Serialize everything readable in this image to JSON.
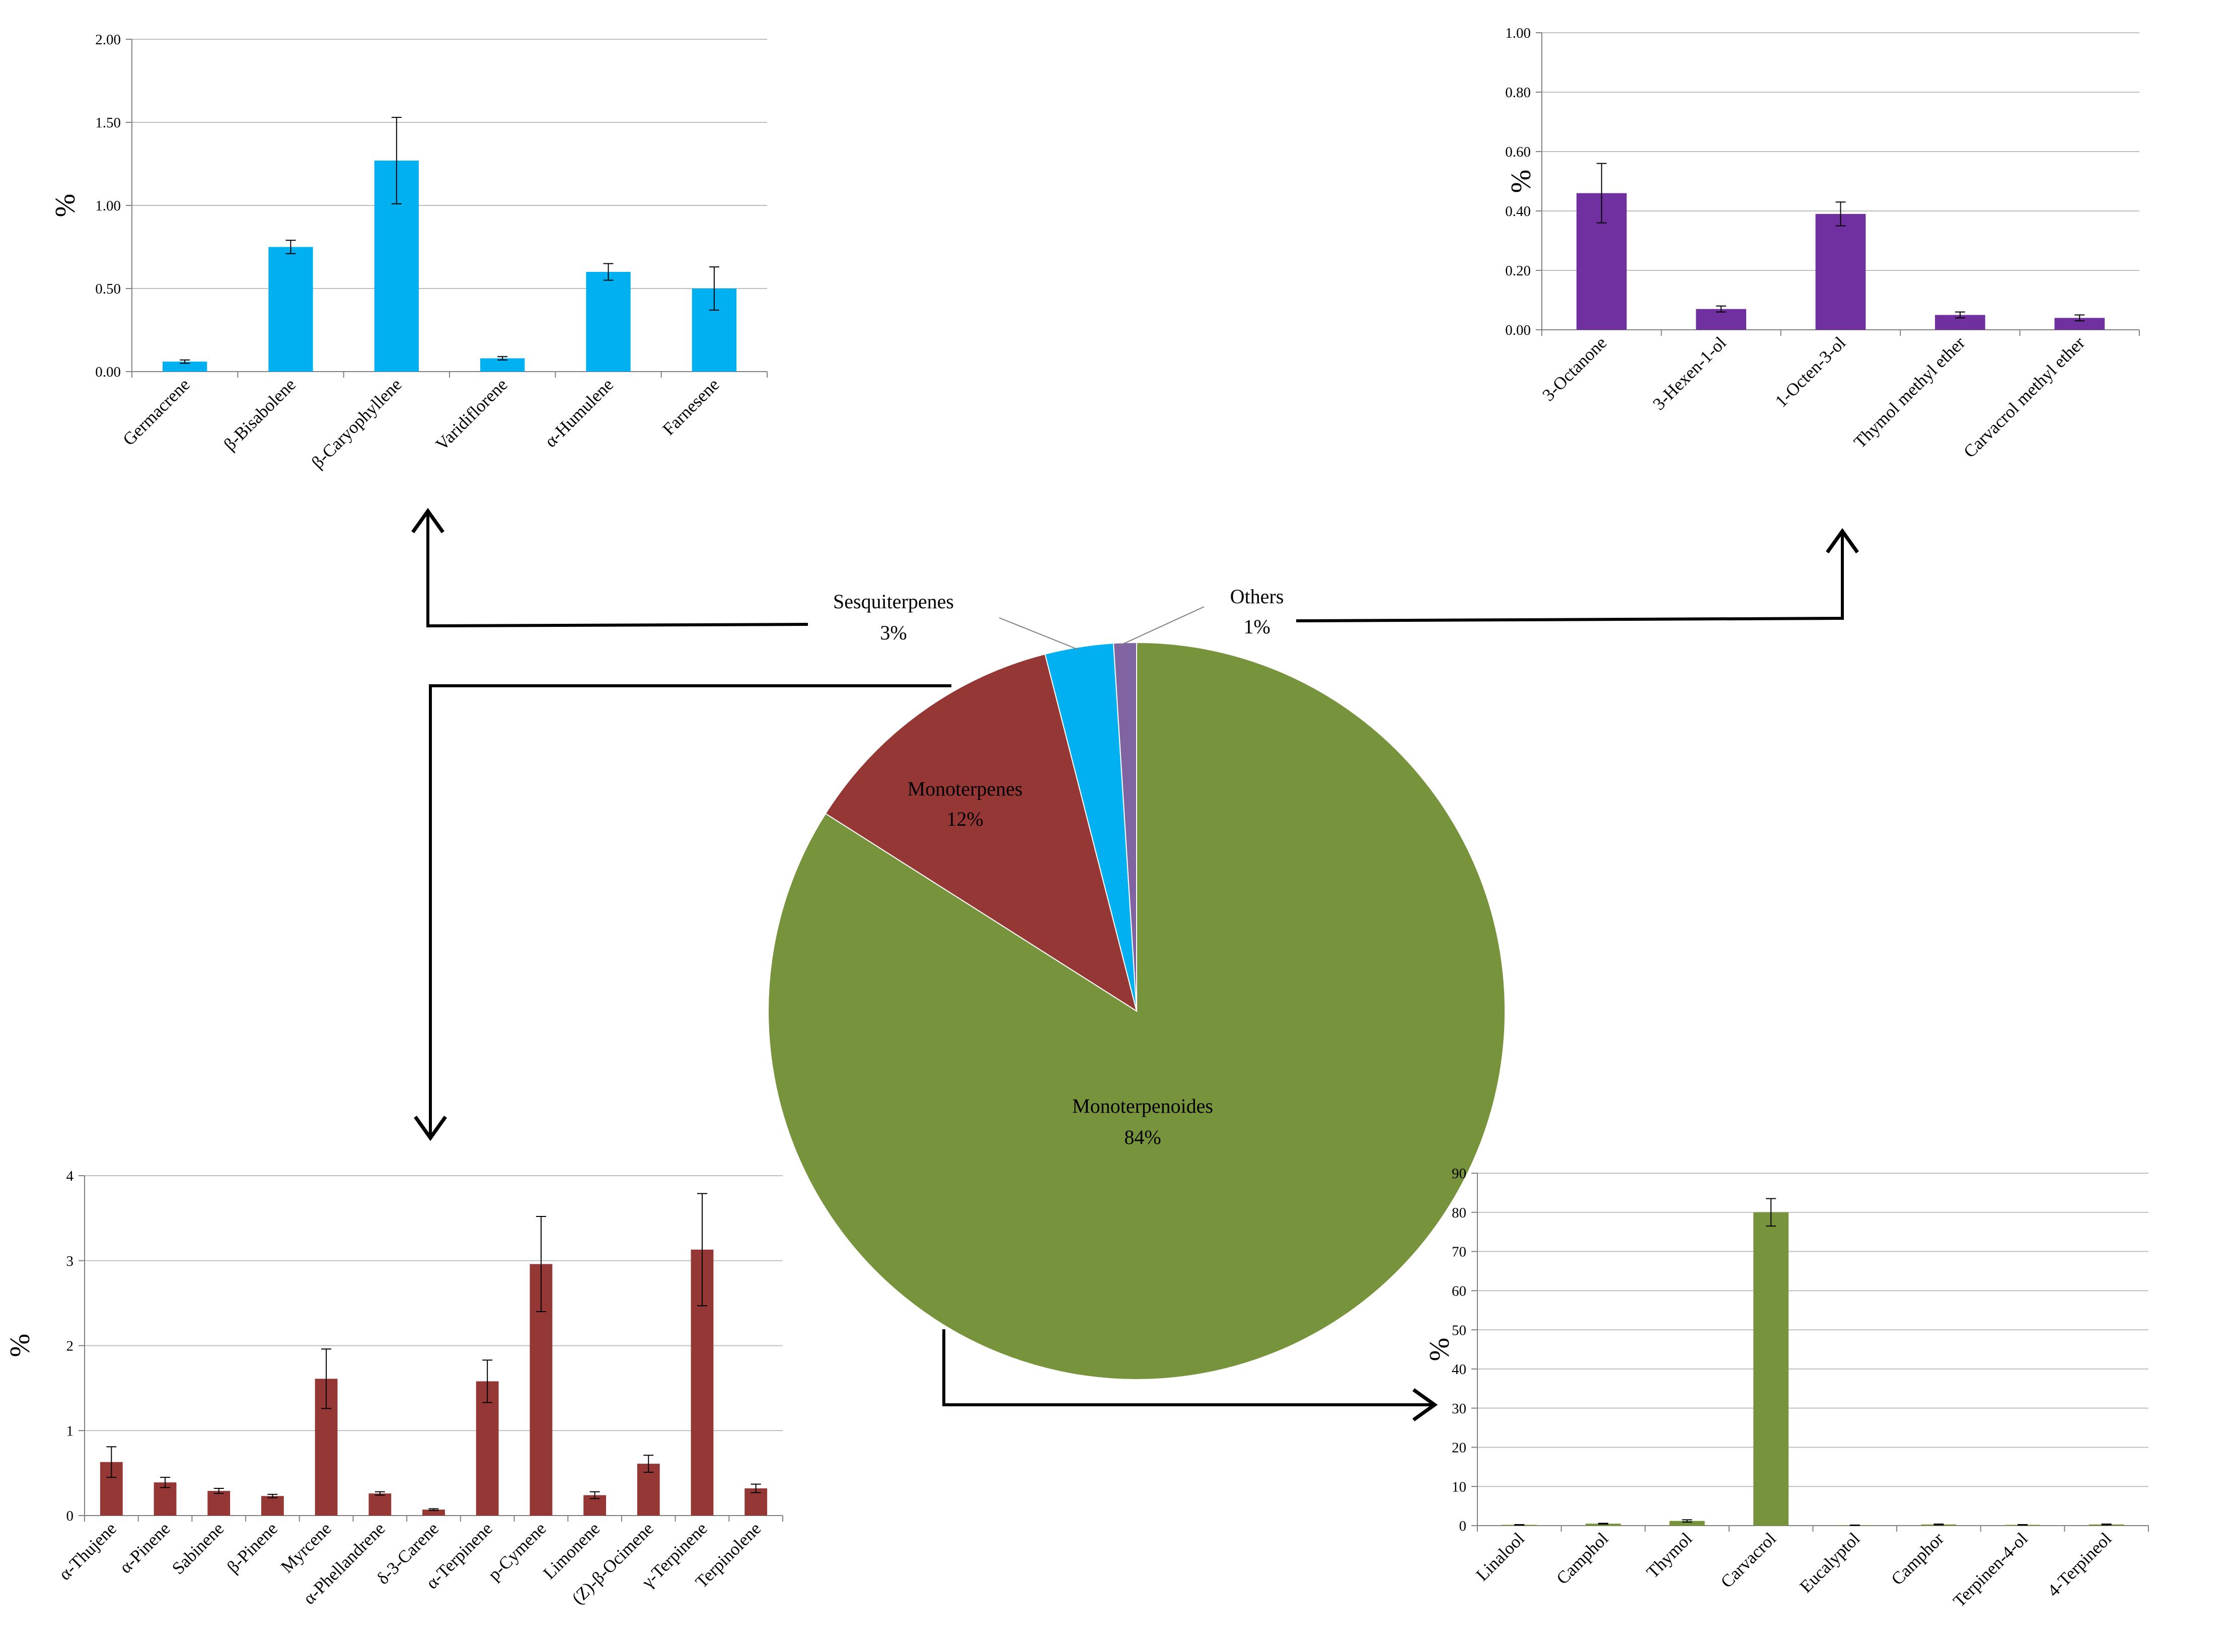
{
  "chart_data": [
    {
      "id": "pie",
      "type": "pie",
      "slices": [
        {
          "label": "Monoterpenoides",
          "pct_label": "84%",
          "value": 84,
          "color": "#77933C"
        },
        {
          "label": "Monoterpenes",
          "pct_label": "12%",
          "value": 12,
          "color": "#953735"
        },
        {
          "label": "Sesquiterpenes",
          "pct_label": "3%",
          "value": 3,
          "color": "#00B0F0"
        },
        {
          "label": "Others",
          "pct_label": "1%",
          "value": 1,
          "color": "#8064A2"
        }
      ]
    },
    {
      "id": "sesquiterpenes",
      "type": "bar",
      "ylabel": "%",
      "ylim": [
        0,
        2
      ],
      "yticks": [
        "0.00",
        "0.50",
        "1.00",
        "1.50",
        "2.00"
      ],
      "color": "#00B0F0",
      "categories": [
        "Germacrene",
        "β-Bisabolene",
        "β-Caryophyllene",
        "Varidiflorene",
        "α-Humulene",
        "Farnesene"
      ],
      "values": [
        0.06,
        0.75,
        1.27,
        0.08,
        0.6,
        0.5
      ],
      "errors": [
        0.01,
        0.04,
        0.26,
        0.01,
        0.05,
        0.13
      ]
    },
    {
      "id": "others",
      "type": "bar",
      "ylabel": "%",
      "ylim": [
        0,
        1
      ],
      "yticks": [
        "0.00",
        "0.20",
        "0.40",
        "0.60",
        "0.80",
        "1.00"
      ],
      "color": "#7030A0",
      "categories": [
        "3-Octanone",
        "3-Hexen-1-ol",
        "1-Octen-3-ol",
        "Thymol methyl ether",
        "Carvacrol methyl ether"
      ],
      "values": [
        0.46,
        0.07,
        0.39,
        0.05,
        0.04
      ],
      "errors": [
        0.1,
        0.01,
        0.04,
        0.01,
        0.01
      ]
    },
    {
      "id": "monoterpenes",
      "type": "bar",
      "ylabel": "%",
      "ylim": [
        0,
        4
      ],
      "yticks": [
        "0",
        "1",
        "2",
        "3",
        "4"
      ],
      "color": "#953735",
      "categories": [
        "α-Thujene",
        "α-Pinene",
        "Sabinene",
        "β-Pinene",
        "Myrcene",
        "α-Phellandrene",
        "δ-3-Carene",
        "α-Terpinene",
        "p-Cymene",
        "Limonene",
        "(Z)-β-Ocimene",
        "γ-Terpinene",
        "Terpinolene"
      ],
      "values": [
        0.63,
        0.39,
        0.29,
        0.23,
        1.61,
        0.26,
        0.07,
        1.58,
        2.96,
        0.24,
        0.61,
        3.13,
        0.32
      ],
      "errors": [
        0.18,
        0.06,
        0.03,
        0.02,
        0.35,
        0.02,
        0.01,
        0.25,
        0.56,
        0.04,
        0.1,
        0.66,
        0.05
      ]
    },
    {
      "id": "monoterpenoides",
      "type": "bar",
      "ylabel": "%",
      "ylim": [
        0,
        90
      ],
      "yticks": [
        "0",
        "10",
        "20",
        "30",
        "40",
        "50",
        "60",
        "70",
        "80",
        "90"
      ],
      "color": "#77933C",
      "categories": [
        "Linalool",
        "Camphol",
        "Thymol",
        "Carvacrol",
        "Eucalyptol",
        "Camphor",
        "Terpinen-4-ol",
        "4-Terpineol"
      ],
      "values": [
        0.2,
        0.5,
        1.2,
        80,
        0.1,
        0.3,
        0.2,
        0.3
      ],
      "errors": [
        0.05,
        0.1,
        0.3,
        3.5,
        0.05,
        0.1,
        0.05,
        0.1
      ]
    }
  ]
}
